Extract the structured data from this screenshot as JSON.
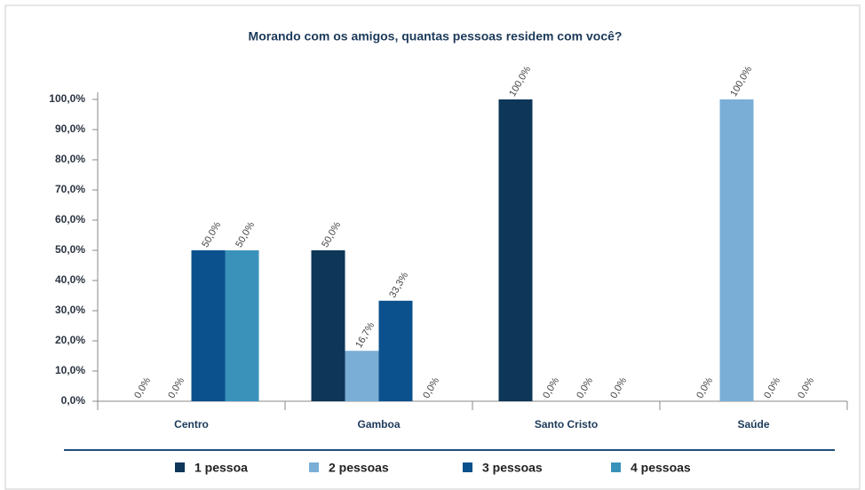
{
  "chart_data": {
    "type": "bar",
    "title": "Morando com os amigos, quantas pessoas residem com você?",
    "categories": [
      "Centro",
      "Gamboa",
      "Santo Cristo",
      "Saúde"
    ],
    "series": [
      {
        "name": "1 pessoa",
        "color": "#0d3658",
        "values": [
          0,
          50,
          100,
          0
        ],
        "value_labels": [
          "0,0%",
          "50,0%",
          "100,0%",
          "0,0%"
        ]
      },
      {
        "name": "2 pessoas",
        "color": "#7aaed6",
        "values": [
          0,
          16.7,
          0,
          100
        ],
        "value_labels": [
          "0,0%",
          "16,7%",
          "0,0%",
          "100,0%"
        ]
      },
      {
        "name": "3 pessoas",
        "color": "#0b518e",
        "values": [
          50,
          33.3,
          0,
          0
        ],
        "value_labels": [
          "50,0%",
          "33,3%",
          "0,0%",
          "0,0%"
        ]
      },
      {
        "name": "4 pessoas",
        "color": "#3a92bb",
        "values": [
          50,
          0,
          0,
          0
        ],
        "value_labels": [
          "50,0%",
          "0,0%",
          "0,0%",
          "0,0%"
        ]
      }
    ],
    "ylim": [
      0,
      100
    ],
    "yticks": [
      {
        "value": 0,
        "label": "0,0%"
      },
      {
        "value": 10,
        "label": "10,0%"
      },
      {
        "value": 20,
        "label": "20,0%"
      },
      {
        "value": 30,
        "label": "30,0%"
      },
      {
        "value": 40,
        "label": "40,0%"
      },
      {
        "value": 50,
        "label": "50,0%"
      },
      {
        "value": 60,
        "label": "60,0%"
      },
      {
        "value": 70,
        "label": "70,0%"
      },
      {
        "value": 80,
        "label": "80,0%"
      },
      {
        "value": 90,
        "label": "90,0%"
      },
      {
        "value": 100,
        "label": "100,0%"
      }
    ],
    "grid": false,
    "legend": "bottom"
  }
}
